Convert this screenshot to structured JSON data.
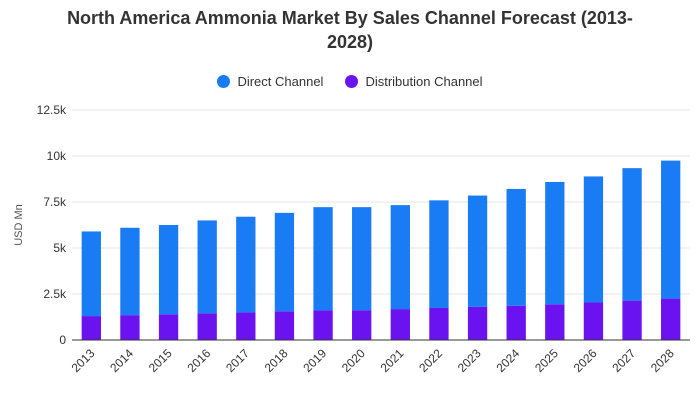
{
  "colors": {
    "direct": "#1a7cf5",
    "distribution": "#6a12ef",
    "grid": "#e5e5e5",
    "axis": "#333333"
  },
  "chart_data": {
    "type": "bar",
    "stacked": true,
    "title": "North America Ammonia Market By Sales Channel Forecast (2013-2028)",
    "title_lines": [
      "North America Ammonia Market By Sales Channel Forecast (2013-",
      "2028)"
    ],
    "ylabel": "USD Mn",
    "xlabel": "",
    "ylim": [
      0,
      12500
    ],
    "yticks": [
      0,
      2500,
      5000,
      7500,
      10000,
      12500
    ],
    "ytick_labels": [
      "0",
      "2.5k",
      "5k",
      "7.5k",
      "10k",
      "12.5k"
    ],
    "grid": true,
    "legend_position": "top-center",
    "categories": [
      "2013",
      "2014",
      "2015",
      "2016",
      "2017",
      "2018",
      "2019",
      "2020",
      "2021",
      "2022",
      "2023",
      "2024",
      "2025",
      "2026",
      "2027",
      "2028"
    ],
    "series": [
      {
        "name": "Direct Channel",
        "color_key": "direct",
        "values": [
          4600,
          4750,
          4850,
          5050,
          5200,
          5350,
          5600,
          5600,
          5650,
          5850,
          6050,
          6350,
          6650,
          6850,
          7200,
          7500
        ]
      },
      {
        "name": "Distribution Channel",
        "color_key": "distribution",
        "values": [
          1300,
          1350,
          1400,
          1450,
          1500,
          1560,
          1620,
          1620,
          1680,
          1740,
          1800,
          1860,
          1940,
          2040,
          2140,
          2250
        ]
      }
    ]
  }
}
